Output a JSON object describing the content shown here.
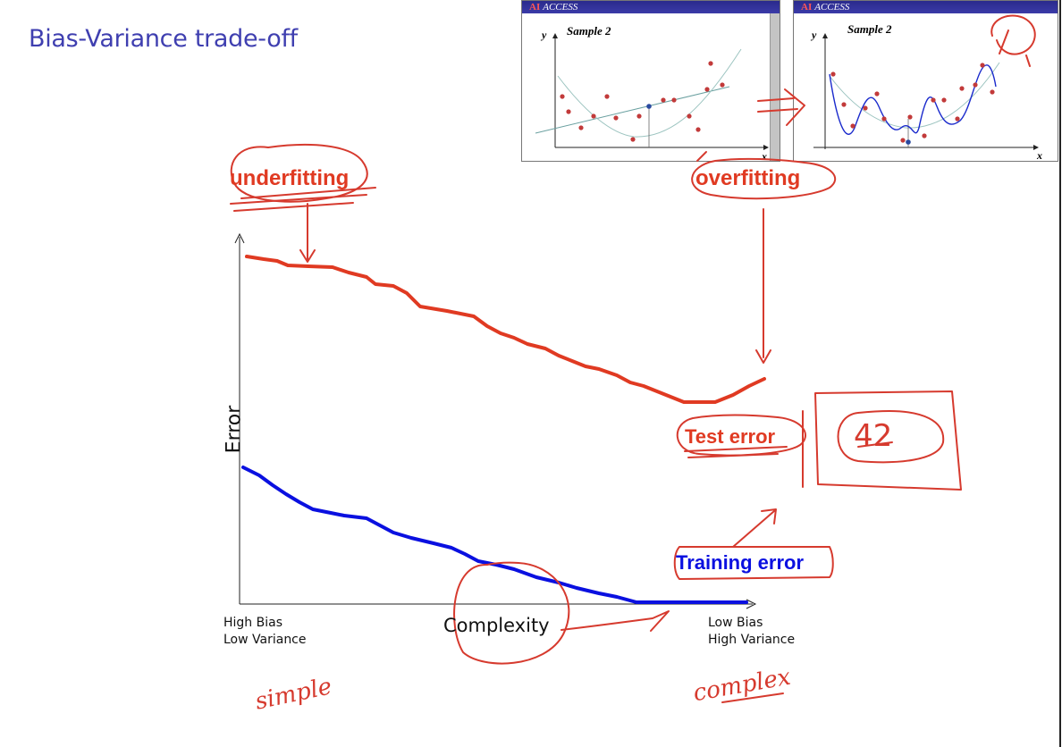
{
  "slide": {
    "title": "Bias-Variance trade-off"
  },
  "insets": [
    {
      "brand": "AI",
      "app": "ACCESS",
      "y_label": "y",
      "x_label": "x",
      "sample_label": "Sample 2"
    },
    {
      "brand": "AI",
      "app": "ACCESS",
      "y_label": "y",
      "x_label": "x",
      "sample_label": "Sample 2"
    }
  ],
  "chart": {
    "y_axis_label": "Error",
    "x_axis_label": "Complexity",
    "left_label_line1": "High Bias",
    "left_label_line2": "Low Variance",
    "right_label_line1": "Low Bias",
    "right_label_line2": "High Variance",
    "curve_labels": {
      "test": "Test error",
      "training": "Training error"
    }
  },
  "annotations": {
    "underfitting": "underfitting",
    "overfitting": "overfitting",
    "boxed_number": "42",
    "simple": "simple",
    "complex": "complex"
  },
  "colors": {
    "test_curve": "#e03a22",
    "training_curve": "#0a10e0",
    "ink": "#d63a2e",
    "title": "#3f3fb0"
  }
}
